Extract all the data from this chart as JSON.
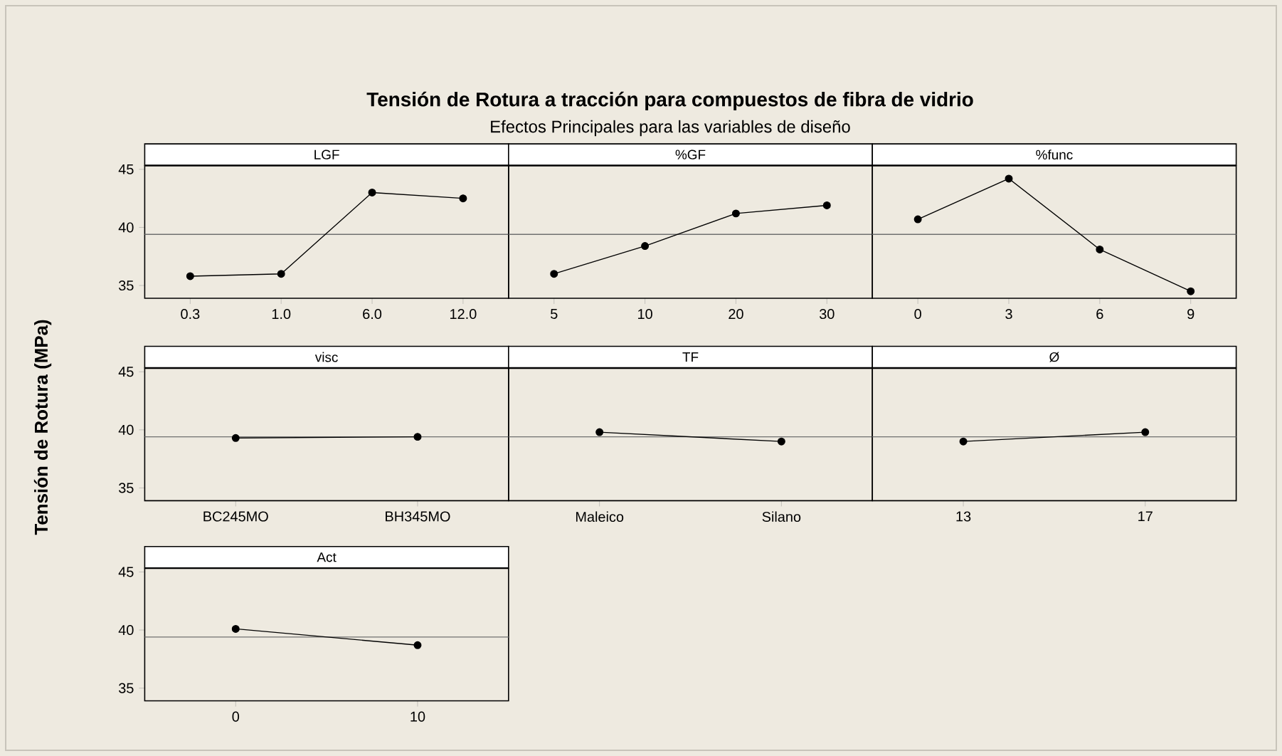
{
  "chart_data": [
    {
      "type": "other",
      "title": "Tensión de Rotura a tracción para compuestos de fibra de vidrio",
      "subtitle": "Efectos Principales para las variables de diseño",
      "ylabel": "Tensión de Rotura (MPa)"
    },
    {
      "type": "line",
      "title": "LGF",
      "categories": [
        "0.3",
        "1.0",
        "6.0",
        "12.0"
      ],
      "values": [
        35.8,
        36.0,
        43.0,
        42.5
      ],
      "color": "#000000",
      "marker": "circle",
      "line_style": "solid",
      "ylim": [
        33.9,
        45.3
      ],
      "yticks": [
        35,
        40,
        45
      ],
      "ref_lines": [
        {
          "axis": "y",
          "value": 39.4,
          "color": "#707070"
        }
      ]
    },
    {
      "type": "line",
      "title": "%GF",
      "categories": [
        "5",
        "10",
        "20",
        "30"
      ],
      "values": [
        36.0,
        38.4,
        41.2,
        41.9
      ],
      "color": "#000000",
      "marker": "circle",
      "line_style": "solid",
      "ylim": [
        33.9,
        45.3
      ],
      "yticks": [
        35,
        40,
        45
      ],
      "tick_labels": "x",
      "ref_lines": [
        {
          "axis": "y",
          "value": 39.4,
          "color": "#707070"
        }
      ]
    },
    {
      "type": "line",
      "title": "%func",
      "categories": [
        "0",
        "3",
        "6",
        "9"
      ],
      "values": [
        40.7,
        44.2,
        38.1,
        34.5
      ],
      "color": "#000000",
      "marker": "circle",
      "line_style": "solid",
      "ylim": [
        33.9,
        45.3
      ],
      "yticks": [
        35,
        40,
        45
      ],
      "tick_labels": "x",
      "ref_lines": [
        {
          "axis": "y",
          "value": 39.4,
          "color": "#707070"
        }
      ]
    },
    {
      "type": "line",
      "title": "visc",
      "categories": [
        "BC245MO",
        "BH345MO"
      ],
      "values": [
        39.3,
        39.4
      ],
      "color": "#000000",
      "marker": "circle",
      "line_style": "solid",
      "ylim": [
        33.9,
        45.3
      ],
      "yticks": [
        35,
        40,
        45
      ],
      "ref_lines": [
        {
          "axis": "y",
          "value": 39.4,
          "color": "#707070"
        }
      ]
    },
    {
      "type": "line",
      "title": "TF",
      "categories": [
        "Maleico",
        "Silano"
      ],
      "values": [
        39.8,
        39.0
      ],
      "color": "#000000",
      "marker": "circle",
      "line_style": "solid",
      "ylim": [
        33.9,
        45.3
      ],
      "yticks": [
        35,
        40,
        45
      ],
      "tick_labels": "x",
      "ref_lines": [
        {
          "axis": "y",
          "value": 39.4,
          "color": "#707070"
        }
      ]
    },
    {
      "type": "line",
      "title": "Ø",
      "categories": [
        "13",
        "17"
      ],
      "values": [
        39.0,
        39.8
      ],
      "color": "#000000",
      "marker": "circle",
      "line_style": "solid",
      "ylim": [
        33.9,
        45.3
      ],
      "yticks": [
        35,
        40,
        45
      ],
      "tick_labels": "x",
      "ref_lines": [
        {
          "axis": "y",
          "value": 39.4,
          "color": "#707070"
        }
      ]
    },
    {
      "type": "line",
      "title": "Act",
      "categories": [
        "0",
        "10"
      ],
      "values": [
        40.1,
        38.7
      ],
      "color": "#000000",
      "marker": "circle",
      "line_style": "solid",
      "ylim": [
        33.9,
        45.3
      ],
      "yticks": [
        35,
        40,
        45
      ],
      "ref_lines": [
        {
          "axis": "y",
          "value": 39.4,
          "color": "#707070"
        }
      ]
    }
  ]
}
